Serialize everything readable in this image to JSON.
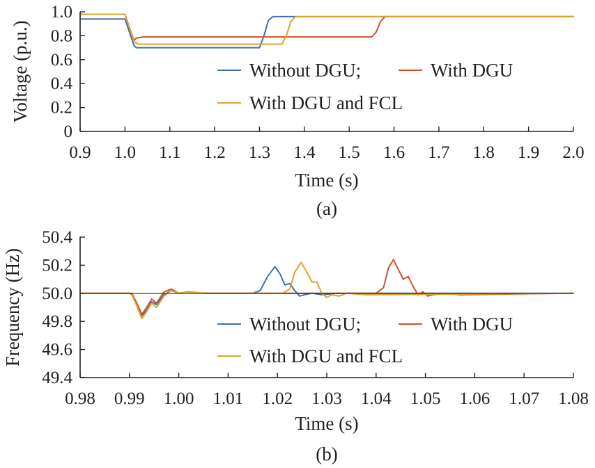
{
  "chart_data": [
    {
      "type": "line",
      "panel_label": "(a)",
      "xlabel": "Time (s)",
      "ylabel": "Voltage (p.u.)",
      "xlim": [
        0.9,
        2.0
      ],
      "ylim": [
        0,
        1.0
      ],
      "xticks": [
        "0.9",
        "1.0",
        "1.1",
        "1.2",
        "1.3",
        "1.4",
        "1.5",
        "1.6",
        "1.7",
        "1.8",
        "1.9",
        "2.0"
      ],
      "yticks": [
        "0",
        "0.2",
        "0.4",
        "0.6",
        "0.8",
        "1.0"
      ],
      "legend": {
        "rows": [
          [
            {
              "label": "Without DGU;",
              "color": "#3c6fb6"
            },
            {
              "label": "With DGU",
              "color": "#d0502a"
            }
          ],
          [
            {
              "label": "With DGU and FCL",
              "color": "#dca429"
            }
          ]
        ]
      },
      "series": [
        {
          "color": "#3c6fb6",
          "x": [
            0.9,
            1.0,
            1.02,
            1.025,
            1.05,
            1.2,
            1.3,
            1.31,
            1.32,
            1.33,
            2.0
          ],
          "y": [
            0.94,
            0.94,
            0.72,
            0.7,
            0.7,
            0.7,
            0.7,
            0.8,
            0.93,
            0.96,
            0.96
          ]
        },
        {
          "color": "#d0502a",
          "x": [
            0.9,
            1.0,
            1.02,
            1.025,
            1.04,
            1.2,
            1.4,
            1.55,
            1.56,
            1.57,
            1.58,
            2.0
          ],
          "y": [
            0.98,
            0.98,
            0.76,
            0.78,
            0.79,
            0.79,
            0.79,
            0.79,
            0.83,
            0.92,
            0.96,
            0.96
          ]
        },
        {
          "color": "#dca429",
          "x": [
            0.9,
            1.0,
            1.02,
            1.03,
            1.2,
            1.35,
            1.36,
            1.37,
            1.38,
            2.0
          ],
          "y": [
            0.98,
            0.98,
            0.75,
            0.73,
            0.73,
            0.73,
            0.8,
            0.92,
            0.96,
            0.96
          ]
        }
      ]
    },
    {
      "type": "line",
      "panel_label": "(b)",
      "xlabel": "Time (s)",
      "ylabel": "Frequency (Hz)",
      "xlim": [
        0.98,
        1.08
      ],
      "ylim": [
        49.4,
        50.4
      ],
      "xticks": [
        "0.98",
        "0.99",
        "1.00",
        "1.01",
        "1.02",
        "1.03",
        "1.04",
        "1.05",
        "1.06",
        "1.07",
        "1.08"
      ],
      "yticks": [
        "49.4",
        "49.6",
        "49.8",
        "50.0",
        "50.2",
        "50.4"
      ],
      "legend": {
        "rows": [
          [
            {
              "label": "Without DGU;",
              "color": "#3c6fb6"
            },
            {
              "label": "With DGU",
              "color": "#d0502a"
            }
          ],
          [
            {
              "label": "With DGU and FCL",
              "color": "#dca429"
            }
          ]
        ]
      },
      "series": [
        {
          "color": "#3c6fb6",
          "x": [
            0.98,
            0.99,
            0.9905,
            0.9915,
            0.9925,
            0.9935,
            0.9945,
            0.9955,
            0.997,
            0.9985,
            1.0,
            1.002,
            1.005,
            1.015,
            1.0165,
            1.018,
            1.0195,
            1.0205,
            1.0215,
            1.0225,
            1.0235,
            1.0245,
            1.0255,
            1.027,
            1.029,
            1.032,
            1.035,
            1.08
          ],
          "y": [
            50.0,
            50.0,
            49.99,
            49.92,
            49.84,
            49.88,
            49.94,
            49.92,
            49.99,
            50.02,
            50.0,
            50.01,
            50.0,
            50.0,
            50.02,
            50.12,
            50.19,
            50.14,
            50.06,
            50.07,
            50.02,
            49.98,
            49.99,
            50.0,
            49.99,
            50.0,
            50.0,
            50.0
          ]
        },
        {
          "color": "#d0502a",
          "x": [
            0.98,
            0.99,
            0.9905,
            0.9915,
            0.9925,
            0.9935,
            0.9945,
            0.9955,
            0.997,
            0.9985,
            1.0,
            1.002,
            1.005,
            1.04,
            1.0415,
            1.0425,
            1.0435,
            1.0445,
            1.0455,
            1.0465,
            1.0475,
            1.0485,
            1.0495,
            1.0505,
            1.0515,
            1.054,
            1.057,
            1.08
          ],
          "y": [
            50.0,
            50.0,
            50.0,
            49.93,
            49.85,
            49.9,
            49.96,
            49.93,
            50.01,
            50.03,
            50.0,
            50.01,
            50.0,
            50.0,
            50.04,
            50.18,
            50.24,
            50.17,
            50.1,
            50.12,
            50.05,
            49.99,
            50.01,
            49.98,
            49.99,
            50.0,
            49.99,
            50.0
          ]
        },
        {
          "color": "#dca429",
          "x": [
            0.98,
            0.99,
            0.9905,
            0.9915,
            0.9925,
            0.9935,
            0.9945,
            0.9955,
            0.997,
            0.9985,
            1.0,
            1.002,
            1.005,
            1.021,
            1.0225,
            1.0235,
            1.0248,
            1.026,
            1.027,
            1.028,
            1.029,
            1.03,
            1.031,
            1.0325,
            1.034,
            1.038,
            1.08
          ],
          "y": [
            50.0,
            50.0,
            49.99,
            49.91,
            49.82,
            49.87,
            49.93,
            49.9,
            49.98,
            50.02,
            50.0,
            50.01,
            50.0,
            50.0,
            50.03,
            50.15,
            50.22,
            50.15,
            50.08,
            50.08,
            50.0,
            49.97,
            49.99,
            49.98,
            50.0,
            49.99,
            50.0
          ]
        }
      ]
    }
  ]
}
